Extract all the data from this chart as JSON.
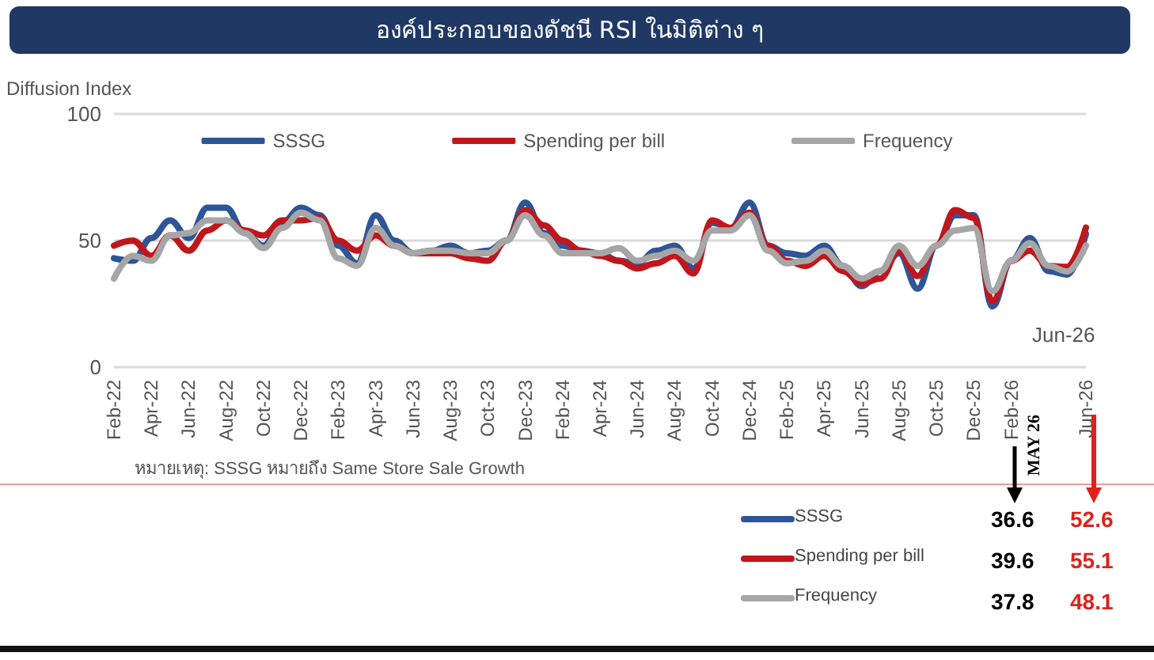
{
  "chart_data": {
    "type": "line",
    "title": "องค์ประกอบของดัชนี RSI ในมิติต่าง ๆ",
    "ylabel": "Diffusion Index",
    "categories": [
      "Feb-22",
      null,
      "Apr-22",
      null,
      "Jun-22",
      null,
      "Aug-22",
      null,
      "Oct-22",
      null,
      "Dec-22",
      null,
      "Feb-23",
      null,
      "Apr-23",
      null,
      "Jun-23",
      null,
      "Aug-23",
      null,
      "Oct-23",
      null,
      "Dec-23",
      null,
      "Feb-24",
      null,
      "Apr-24",
      null,
      "Jun-24",
      null,
      "Aug-24",
      null,
      "Oct-24",
      null,
      "Dec-24",
      null,
      "Feb-25",
      null,
      "Apr-25",
      null,
      "Jun-25",
      null,
      "Aug-25",
      null,
      "Oct-25",
      null,
      "Dec-25",
      null,
      "Feb-26",
      null,
      null,
      null,
      "Jun-26"
    ],
    "series": [
      {
        "name": "SSSG",
        "color": "#2e5597",
        "values": [
          43,
          42,
          51,
          58,
          51,
          63,
          63,
          53,
          48,
          57,
          63,
          60,
          48,
          41,
          60,
          50,
          45,
          46,
          48,
          45,
          46,
          50,
          65,
          53,
          48,
          46,
          45,
          42,
          41,
          46,
          48,
          39,
          57,
          55,
          65,
          48,
          45,
          44,
          48,
          40,
          32,
          38,
          45,
          31,
          48,
          60,
          60,
          24,
          42,
          51,
          38,
          36.6,
          52.6
        ]
      },
      {
        "name": "Spending per bill",
        "color": "#c0171c",
        "values": [
          48,
          50,
          44,
          52,
          46,
          54,
          58,
          54,
          52,
          58,
          58,
          59,
          50,
          46,
          52,
          48,
          45,
          45,
          45,
          43,
          42,
          50,
          62,
          56,
          50,
          46,
          44,
          42,
          39,
          41,
          44,
          37,
          58,
          55,
          61,
          48,
          42,
          40,
          44,
          38,
          33,
          35,
          46,
          36,
          48,
          62,
          59,
          26,
          42,
          46,
          40,
          39.6,
          55.1
        ]
      },
      {
        "name": "Frequency",
        "color": "#a6a6a6",
        "values": [
          35,
          44,
          42,
          52,
          53,
          58,
          58,
          53,
          47,
          55,
          61,
          58,
          43,
          40,
          55,
          48,
          45,
          46,
          46,
          45,
          45,
          50,
          60,
          52,
          45,
          45,
          45,
          47,
          42,
          44,
          46,
          42,
          54,
          54,
          60,
          46,
          41,
          42,
          46,
          40,
          35,
          38,
          48,
          40,
          48,
          54,
          55,
          30,
          42,
          49,
          40,
          37.8,
          48.1
        ]
      }
    ],
    "ylim": [
      0,
      100
    ],
    "yticks": [
      0,
      50,
      100
    ],
    "grid": "y",
    "legend": "top",
    "marker": "none",
    "line_style": "solid",
    "annotations": [
      "Jun-26",
      "หมายเหตุ: SSSG หมายถึง Same Store Sale Growth",
      "MAY 26",
      "36.6",
      "39.6",
      "37.8",
      "52.6",
      "55.1",
      "48.1"
    ]
  }
}
